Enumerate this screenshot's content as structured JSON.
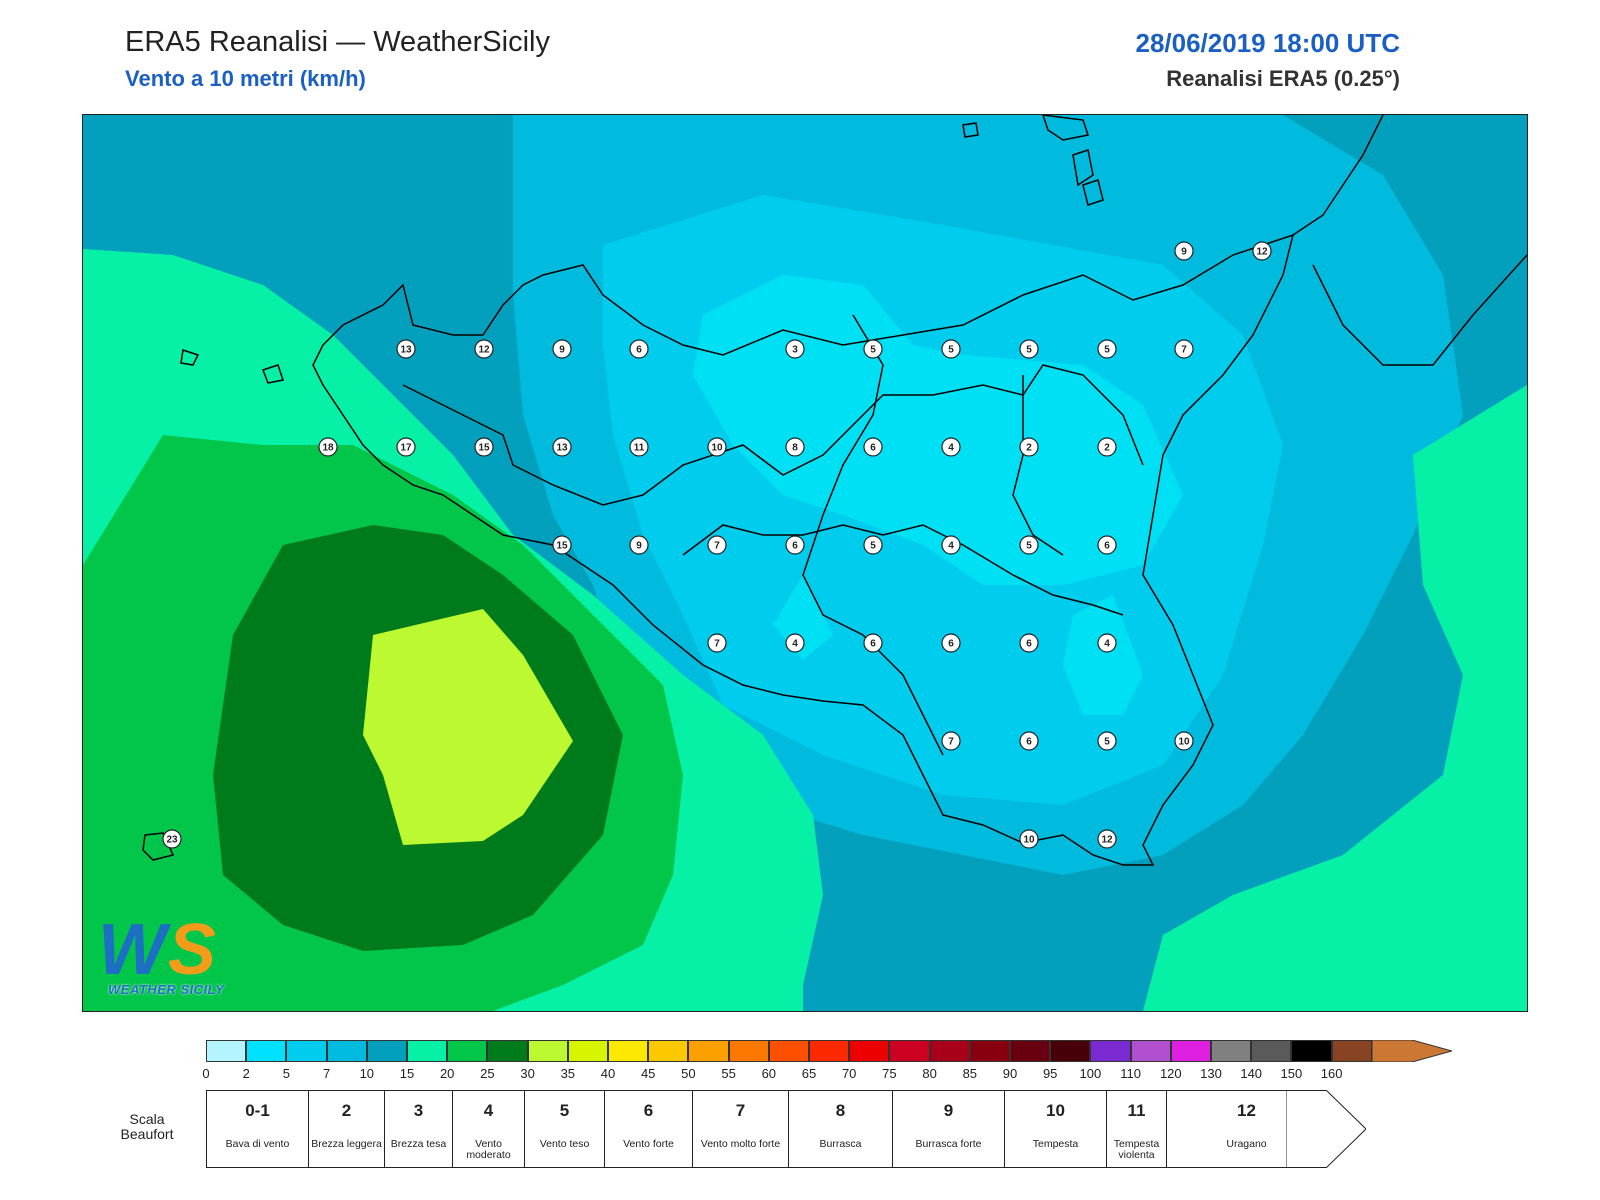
{
  "header": {
    "title": "ERA5 Reanalisi — WeatherSicily",
    "subtitle": "Vento a 10 metri (km/h)",
    "datetime": "28/06/2019 18:00 UTC",
    "model": "Reanalisi ERA5 (0.25°)"
  },
  "logo": {
    "text": "WEATHER SICILY",
    "letters": "WS"
  },
  "colors": {
    "calm": "#00ccee",
    "light": "#00bbdd",
    "moderate": "#02a0bd",
    "sea_green": "#06f1a6",
    "green": "#01c64a",
    "dark_green": "#007b1b",
    "yellow_green": "#bcf930",
    "very_calm": "#00e0f5",
    "coast": "#000000"
  },
  "stations": [
    {
      "v": "13"
    },
    {
      "v": "12"
    },
    {
      "v": "9"
    },
    {
      "v": "6"
    },
    {
      "v": "3"
    },
    {
      "v": "5"
    },
    {
      "v": "5"
    },
    {
      "v": "5"
    },
    {
      "v": "5"
    },
    {
      "v": "7"
    },
    {
      "v": "18"
    },
    {
      "v": "17"
    },
    {
      "v": "15"
    },
    {
      "v": "13"
    },
    {
      "v": "11"
    },
    {
      "v": "10"
    },
    {
      "v": "8"
    },
    {
      "v": "6"
    },
    {
      "v": "4"
    },
    {
      "v": "2"
    },
    {
      "v": "2"
    },
    {
      "v": "15"
    },
    {
      "v": "9"
    },
    {
      "v": "7"
    },
    {
      "v": "6"
    },
    {
      "v": "5"
    },
    {
      "v": "4"
    },
    {
      "v": "5"
    },
    {
      "v": "6"
    },
    {
      "v": "7"
    },
    {
      "v": "4"
    },
    {
      "v": "6"
    },
    {
      "v": "6"
    },
    {
      "v": "6"
    },
    {
      "v": "4"
    },
    {
      "v": "7"
    },
    {
      "v": "6"
    },
    {
      "v": "5"
    },
    {
      "v": "10"
    },
    {
      "v": "23"
    },
    {
      "v": "10"
    },
    {
      "v": "12"
    },
    {
      "v": "9"
    },
    {
      "v": "12"
    }
  ],
  "scale": {
    "colors": [
      "#b4f4ff",
      "#00e0ff",
      "#00ccee",
      "#00bbdd",
      "#02a0bd",
      "#06f1a6",
      "#01c64a",
      "#007b1b",
      "#bcf930",
      "#d8f500",
      "#fce800",
      "#fcc800",
      "#fca000",
      "#fc7800",
      "#fc5000",
      "#fc2800",
      "#ec0000",
      "#cc0020",
      "#a80018",
      "#880010",
      "#680010",
      "#480008",
      "#7a2ad0",
      "#b050d0",
      "#e020e0",
      "#808080",
      "#5a5a5a",
      "#000000",
      "#884422",
      "#cc7733"
    ],
    "ticks": [
      "0",
      "2",
      "5",
      "7",
      "10",
      "15",
      "20",
      "25",
      "30",
      "35",
      "40",
      "45",
      "50",
      "55",
      "60",
      "65",
      "70",
      "75",
      "80",
      "85",
      "90",
      "95",
      "100",
      "110",
      "120",
      "130",
      "140",
      "150",
      "160"
    ]
  },
  "beaufort": {
    "label": "Scala Beaufort",
    "levels": [
      {
        "num": "0-1",
        "name": "Bava di vento"
      },
      {
        "num": "2",
        "name": "Brezza leggera"
      },
      {
        "num": "3",
        "name": "Brezza tesa"
      },
      {
        "num": "4",
        "name": "Vento moderato"
      },
      {
        "num": "5",
        "name": "Vento teso"
      },
      {
        "num": "6",
        "name": "Vento forte"
      },
      {
        "num": "7",
        "name": "Vento molto forte"
      },
      {
        "num": "8",
        "name": "Burrasca"
      },
      {
        "num": "9",
        "name": "Burrasca forte"
      },
      {
        "num": "10",
        "name": "Tempesta"
      },
      {
        "num": "11",
        "name": "Tempesta violenta"
      },
      {
        "num": "12",
        "name": "Uragano"
      }
    ]
  }
}
